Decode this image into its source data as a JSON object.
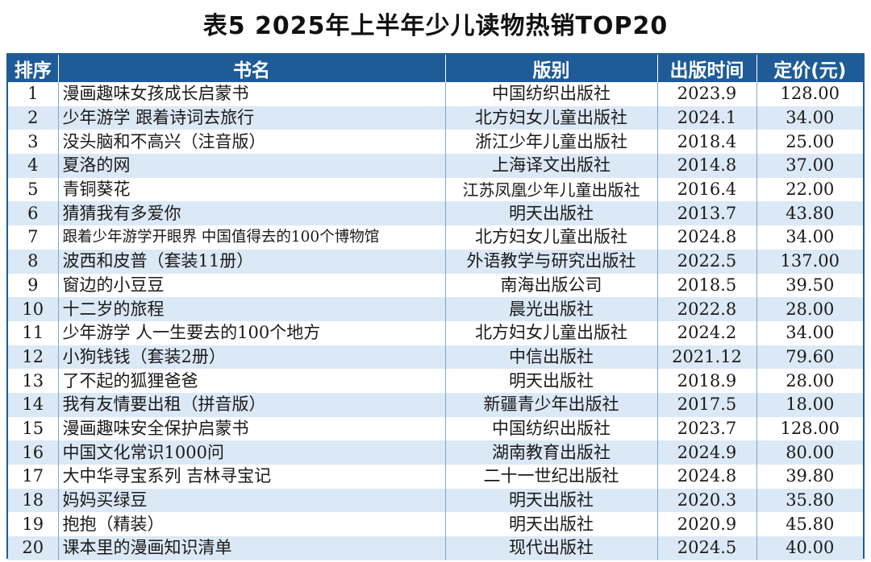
{
  "title": "表5  2025年上半年少儿读物热销TOP20",
  "table": {
    "headers": {
      "rank": "排序",
      "book": "书名",
      "publisher": "版别",
      "date": "出版时间",
      "price": "定价(元)"
    },
    "rows": [
      {
        "rank": "1",
        "book": "漫画趣味女孩成长启蒙书",
        "publisher": "中国纺织出版社",
        "date": "2023.9",
        "price": "128.00"
      },
      {
        "rank": "2",
        "book": "少年游学  跟着诗词去旅行",
        "publisher": "北方妇女儿童出版社",
        "date": "2024.1",
        "price": "34.00"
      },
      {
        "rank": "3",
        "book": "没头脑和不高兴（注音版）",
        "publisher": "浙江少年儿童出版社",
        "date": "2018.4",
        "price": "25.00"
      },
      {
        "rank": "4",
        "book": "夏洛的网",
        "publisher": "上海译文出版社",
        "date": "2014.8",
        "price": "37.00"
      },
      {
        "rank": "5",
        "book": "青铜葵花",
        "publisher": "江苏凤凰少年儿童出版社",
        "date": "2016.4",
        "price": "22.00"
      },
      {
        "rank": "6",
        "book": "猜猜我有多爱你",
        "publisher": "明天出版社",
        "date": "2013.7",
        "price": "43.80"
      },
      {
        "rank": "7",
        "book": "跟着少年游学开眼界  中国值得去的100个博物馆",
        "publisher": "北方妇女儿童出版社",
        "date": "2024.8",
        "price": "34.00"
      },
      {
        "rank": "8",
        "book": "波西和皮普（套装11册）",
        "publisher": "外语教学与研究出版社",
        "date": "2022.5",
        "price": "137.00"
      },
      {
        "rank": "9",
        "book": "窗边的小豆豆",
        "publisher": "南海出版公司",
        "date": "2018.5",
        "price": "39.50"
      },
      {
        "rank": "10",
        "book": "十二岁的旅程",
        "publisher": "晨光出版社",
        "date": "2022.8",
        "price": "28.00"
      },
      {
        "rank": "11",
        "book": "少年游学  人一生要去的100个地方",
        "publisher": "北方妇女儿童出版社",
        "date": "2024.2",
        "price": "34.00"
      },
      {
        "rank": "12",
        "book": "小狗钱钱（套装2册）",
        "publisher": "中信出版社",
        "date": "2021.12",
        "price": "79.60"
      },
      {
        "rank": "13",
        "book": "了不起的狐狸爸爸",
        "publisher": "明天出版社",
        "date": "2018.9",
        "price": "28.00"
      },
      {
        "rank": "14",
        "book": "我有友情要出租（拼音版）",
        "publisher": "新疆青少年出版社",
        "date": "2017.5",
        "price": "18.00"
      },
      {
        "rank": "15",
        "book": "漫画趣味安全保护启蒙书",
        "publisher": "中国纺织出版社",
        "date": "2023.7",
        "price": "128.00"
      },
      {
        "rank": "16",
        "book": "中国文化常识1000问",
        "publisher": "湖南教育出版社",
        "date": "2024.9",
        "price": "80.00"
      },
      {
        "rank": "17",
        "book": "大中华寻宝系列  吉林寻宝记",
        "publisher": "二十一世纪出版社",
        "date": "2024.8",
        "price": "39.80"
      },
      {
        "rank": "18",
        "book": "妈妈买绿豆",
        "publisher": "明天出版社",
        "date": "2020.3",
        "price": "35.80"
      },
      {
        "rank": "19",
        "book": "抱抱（精装）",
        "publisher": "明天出版社",
        "date": "2020.9",
        "price": "45.80"
      },
      {
        "rank": "20",
        "book": "课本里的漫画知识清单",
        "publisher": "现代出版社",
        "date": "2024.5",
        "price": "40.00"
      }
    ]
  },
  "colors": {
    "header_bg": "#1f5c97",
    "stripe_bg": "#dbe9f6",
    "grid_line": "#7fa7cc"
  }
}
